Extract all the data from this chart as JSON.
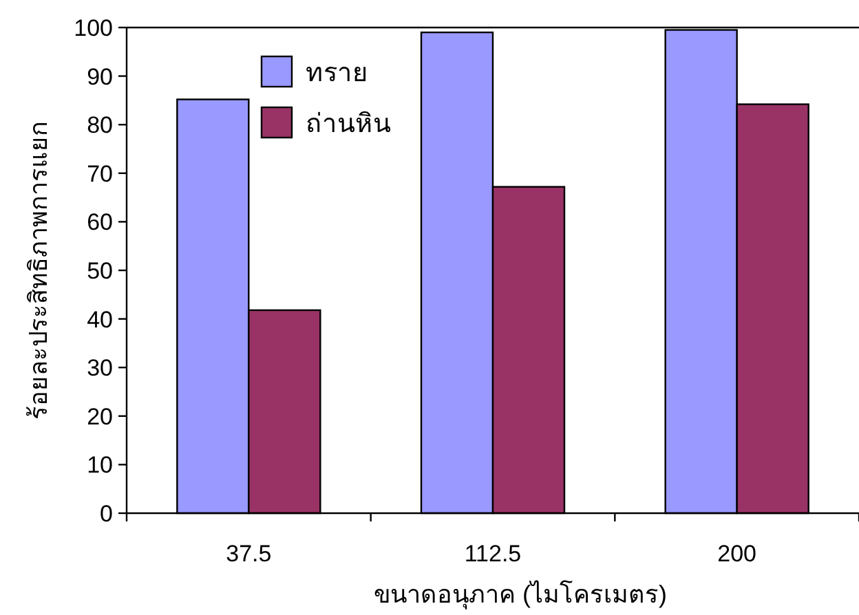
{
  "chart_data": {
    "type": "bar",
    "xlabel": "ขนาดอนุภาค (ไมโครเมตร)",
    "ylabel": "ร้อยละประสิทธิภาพการแยก",
    "categories": [
      "37.5",
      "112.5",
      "200"
    ],
    "series": [
      {
        "name": "ทราย",
        "color": "#9999ff",
        "values": [
          85.2,
          99,
          99.5
        ]
      },
      {
        "name": "ถ่านหิน",
        "color": "#993366",
        "values": [
          41.8,
          67.2,
          84.2
        ]
      }
    ],
    "ylim": [
      0,
      100
    ],
    "yticks": [
      0,
      10,
      20,
      30,
      40,
      50,
      60,
      70,
      80,
      90,
      100
    ],
    "grid": false,
    "legend": "top left"
  }
}
